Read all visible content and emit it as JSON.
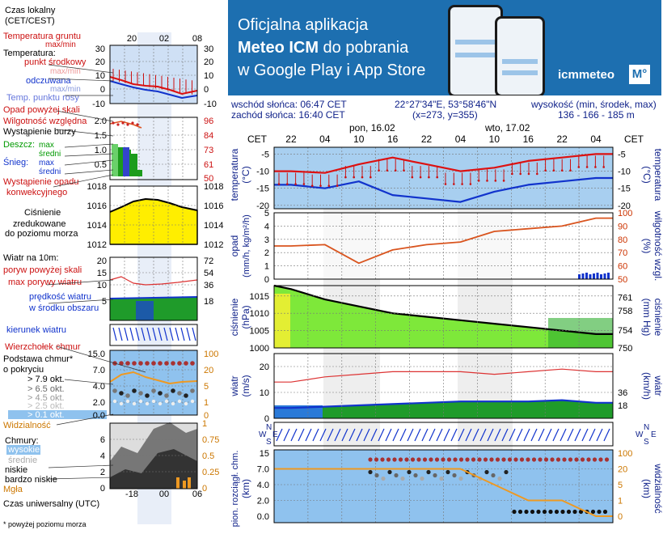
{
  "banner": {
    "line1": "Oficjalna aplikacja",
    "line2_bold": "Meteo ICM",
    "line2_rest": " do pobrania",
    "line3": "w Google Play i App Store",
    "logo_text": "icmmeteo",
    "logo_badge": "M°"
  },
  "info": {
    "sunrise": "wschód słońca: 06:47 CET",
    "sunset": "zachód słońca: 16:40 CET",
    "coords": "22°27'34\"E, 53°58'46\"N",
    "grid": "(x=273, y=355)",
    "elev_label": "wysokość (min, środek, max)",
    "elev_values": "136 - 166 - 185 m"
  },
  "legend": {
    "time_local": "Czas lokalny",
    "time_local_sub": "(CET/CEST)",
    "time_ticks_top": [
      "20",
      "02",
      "08"
    ],
    "ground_temp": "Temperatura gruntu",
    "ground_sub": "max/min",
    "temperature": "Temperatura:",
    "mid_point": "punkt środkowy",
    "max_min_1": "max/min",
    "felt": "odczuwana",
    "max_min_2": "max/min",
    "dew": "Temp. punktu rosy",
    "temp_ticks": [
      "30",
      "20",
      "10",
      "0",
      "-10"
    ],
    "rain_above": "Opad powyżej skali",
    "humidity": "Wilgotność względna",
    "storm": "Wystąpienie burzy",
    "rain": "Deszcz:",
    "max_1": "max",
    "avg_1": "średni",
    "snow": "Śnieg:",
    "max_2": "max",
    "avg_2": "średni",
    "precip_occur_1": "Wystąpienie opadu",
    "precip_occur_2": "konwekcyjnego",
    "precip_ticks": [
      "2.0",
      "1.5",
      "1.0",
      "0.5"
    ],
    "hum_ticks": [
      "96",
      "84",
      "73",
      "61",
      "50"
    ],
    "pressure_1": "Ciśnienie",
    "pressure_2": "zredukowane",
    "pressure_3": "do poziomu morza",
    "pressure_ticks": [
      "1018",
      "1016",
      "1014",
      "1012"
    ],
    "wind_10m": "Wiatr na 10m:",
    "gust_above": "poryw powyżej skali",
    "gust_max": "max porywy wiatru",
    "wind_speed_1": "prędkość wiatru",
    "wind_speed_2": "w środku obszaru",
    "wind_ticks_left": [
      "20",
      "15",
      "10",
      "5"
    ],
    "wind_ticks_right": [
      "72",
      "54",
      "36",
      "18"
    ],
    "wind_dir": "kierunek wiatru",
    "cloud_top": "Wierzchołek chmur",
    "cloud_base_1": "Podstawa chmur*",
    "cloud_base_2": "o pokryciu",
    "cov_1": "> 7.9 okt.",
    "cov_2": "> 6.5 okt.",
    "cov_3": "> 4.5 okt.",
    "cov_4": "> 2.5 okt.",
    "cov_5": "> 0.1 okt.",
    "visibility": "Widzialność",
    "cloud_ticks_left": [
      "15.0",
      "7.0",
      "4.0",
      "2.0",
      "0.0"
    ],
    "cloud_ticks_right": [
      "100",
      "20",
      "5",
      "1",
      "0"
    ],
    "clouds": "Chmury:",
    "high": "wysokie",
    "medium": "średnie",
    "low": "niskie",
    "very_low": "bardzo niskie",
    "fog": "Mgła",
    "cl_ticks_left": [
      "6",
      "4",
      "2",
      "0"
    ],
    "cl_ticks_right": [
      "1",
      "0.75",
      "0.5",
      "0.25",
      "0"
    ],
    "utc": "Czas uniwersalny (UTC)",
    "utc_ticks": [
      "18",
      "00",
      "06"
    ],
    "footnote": "* powyżej poziomu morza"
  },
  "main": {
    "cet": "CET",
    "day1": "pon, 16.02",
    "day2": "wto, 17.02",
    "hours": [
      "22",
      "04",
      "10",
      "16",
      "22",
      "04",
      "10",
      "16",
      "22",
      "04"
    ],
    "temp_label_left": "temperatura",
    "temp_unit_left": "(°C)",
    "temp_label_right": "temperatura",
    "temp_unit_right": "(°C)",
    "temp_ticks": [
      "-5",
      "-10",
      "-15",
      "-20"
    ],
    "precip_label": "opad",
    "precip_unit": "(mm/h, kg/m²/h)",
    "precip_ticks": [
      "5",
      "4",
      "3",
      "2",
      "1",
      "0"
    ],
    "hum_label": "wilgotność wzgl.",
    "hum_unit": "(%)",
    "hum_ticks": [
      "100",
      "90",
      "80",
      "70",
      "60",
      "50"
    ],
    "press_label": "ciśnienie",
    "press_unit": "(hPa)",
    "press_ticks": [
      "1015",
      "1010",
      "1005",
      "1000"
    ],
    "press_label_r": "ciśnienie",
    "press_unit_r": "(mm Hg)",
    "press_ticks_r": [
      "761",
      "758",
      "754",
      "750"
    ],
    "wind_label": "wiatr",
    "wind_unit": "(m/s)",
    "wind_ticks": [
      "20",
      "10",
      "0"
    ],
    "wind_label_r": "wiatr",
    "wind_unit_r": "(km/h)",
    "wind_ticks_r": [
      "36",
      "18"
    ],
    "compass_w": "W",
    "compass_n": "N",
    "compass_s": "S",
    "compass_e": "E",
    "cloud_label": "pion. rozciągł. chm.",
    "cloud_unit": "(km)",
    "cloud_ticks": [
      "15",
      "7.0",
      "4.0",
      "2.0",
      "0.0"
    ],
    "vis_label": "widzialność",
    "vis_unit": "(km)",
    "vis_ticks": [
      "100",
      "20",
      "5",
      "1",
      "0"
    ]
  },
  "colors": {
    "banner": "#1d6fb0",
    "temp": "#dd1111",
    "felt": "#1133cc",
    "humidity": "#d9541e",
    "pressure_fill": "#7ee83a",
    "wind_fill": "#1f9b2a",
    "legend_pressure": "#ffee00"
  },
  "chart_data": [
    {
      "type": "line",
      "title": "temperatura",
      "x": [
        "22",
        "04",
        "10",
        "16",
        "22",
        "04",
        "10",
        "16",
        "22",
        "04"
      ],
      "series": [
        {
          "values": [
            -10,
            -10.5,
            -8,
            -6,
            -8,
            -10,
            -9,
            -7,
            -6,
            -5
          ]
        },
        {
          "values": [
            -14,
            -15,
            -13,
            -17,
            -18,
            -19,
            -16,
            -14,
            -13,
            -12
          ]
        }
      ],
      "ylim": [
        -21,
        -3
      ]
    },
    {
      "type": "line",
      "title": "wilgotność wzgl.",
      "x": [
        "22",
        "04",
        "10",
        "16",
        "22",
        "04",
        "10",
        "16",
        "22",
        "04"
      ],
      "series": [
        {
          "values": [
            75,
            76,
            62,
            72,
            76,
            78,
            86,
            88,
            90,
            96
          ]
        }
      ],
      "ylim": [
        50,
        100
      ]
    },
    {
      "type": "area",
      "title": "ciśnienie",
      "x": [
        "22",
        "04",
        "10",
        "16",
        "22",
        "04",
        "10",
        "16",
        "22",
        "04"
      ],
      "series": [
        {
          "values": [
            1017,
            1014,
            1012,
            1010,
            1009,
            1008,
            1007,
            1006,
            1005,
            1004
          ]
        }
      ],
      "ylim": [
        1000,
        1018
      ]
    },
    {
      "type": "area",
      "title": "wiatr",
      "x": [
        "22",
        "04",
        "10",
        "16",
        "22",
        "04",
        "10",
        "16",
        "22",
        "04"
      ],
      "series": [
        {
          "values": [
            4,
            4.5,
            5,
            5.5,
            6,
            6.5,
            6.5,
            6.5,
            7,
            6
          ]
        },
        {
          "values": [
            14,
            16,
            17,
            18,
            18,
            18,
            17,
            18,
            19,
            18
          ]
        }
      ],
      "ylim": [
        0,
        25
      ]
    },
    {
      "type": "line",
      "title": "widzialność",
      "x": [
        "22",
        "04",
        "10",
        "16",
        "22",
        "04",
        "10",
        "16",
        "22",
        "04"
      ],
      "series": [
        {
          "values": [
            20,
            20,
            20,
            20,
            20,
            20,
            5,
            1,
            1,
            0
          ]
        }
      ],
      "ylim": [
        0,
        100
      ]
    }
  ]
}
